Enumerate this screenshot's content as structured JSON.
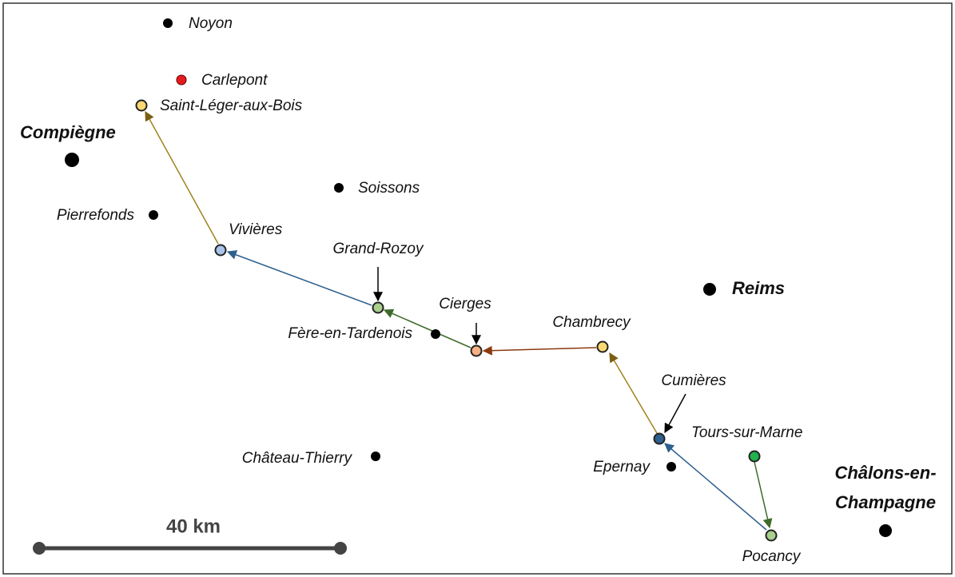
{
  "places": [
    {
      "label": "Noyon"
    },
    {
      "label": "Carlepont"
    },
    {
      "label": "Saint-Léger-aux-Bois"
    },
    {
      "label": "Compiègne"
    },
    {
      "label": "Soissons"
    },
    {
      "label": "Pierrefonds"
    },
    {
      "label": "Vivières"
    },
    {
      "label": "Grand-Rozoy"
    },
    {
      "label": "Fère-en-Tardenois"
    },
    {
      "label": "Cierges"
    },
    {
      "label": "Chambrecy"
    },
    {
      "label": "Reims"
    },
    {
      "label": "Cumières"
    },
    {
      "label": "Tours-sur-Marne"
    },
    {
      "label": "Epernay"
    },
    {
      "label": "Château-Thierry"
    },
    {
      "label_lines": [
        "Châlons-en-",
        "Champagne"
      ]
    },
    {
      "label": "Pocancy"
    }
  ],
  "scale": {
    "label": "40 km"
  }
}
